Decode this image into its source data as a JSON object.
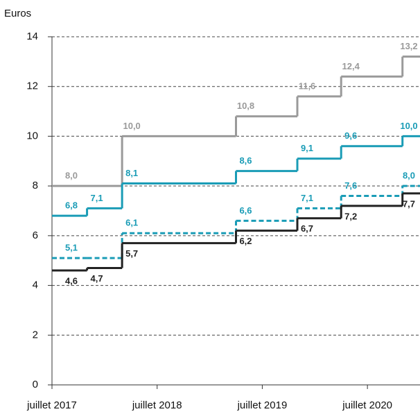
{
  "chart_data": {
    "type": "step",
    "ylabel": "Euros",
    "x": [
      "2017-07",
      "2017-11",
      "2018-03",
      "2019-04",
      "2019-11",
      "2020-04",
      "2020-11"
    ],
    "xlim": [
      "2017-07",
      "2021-01"
    ],
    "xticks": [
      {
        "value": "2017-07",
        "label": "juillet 2017"
      },
      {
        "value": "2018-07",
        "label": "juillet 2018"
      },
      {
        "value": "2019-07",
        "label": "juillet 2019"
      },
      {
        "value": "2020-07",
        "label": "juillet 2020"
      }
    ],
    "ylim": [
      0,
      14
    ],
    "yticks": [
      0,
      2,
      4,
      6,
      8,
      10,
      12,
      14
    ],
    "grid": true,
    "series": [
      {
        "color": "#9a9a9a",
        "linestyle": "solid",
        "label_side": "above",
        "values": [
          8.0,
          8.0,
          10.0,
          10.8,
          11.6,
          12.4,
          13.2
        ],
        "value_labels": [
          "8,0",
          null,
          "10,0",
          "10,8",
          "11,6",
          "12,4",
          "13,2"
        ]
      },
      {
        "color": "#1a9cb6",
        "linestyle": "solid",
        "label_side": "above",
        "values": [
          6.8,
          7.1,
          8.1,
          8.6,
          9.1,
          9.6,
          10.0
        ],
        "value_labels": [
          "6,8",
          "7,1",
          "8,1",
          "8,6",
          "9,1",
          "9,6",
          "10,0"
        ]
      },
      {
        "color": "#1a9cb6",
        "linestyle": "dashed",
        "label_side": "above",
        "values": [
          5.1,
          5.1,
          6.1,
          6.6,
          7.1,
          7.6,
          8.0
        ],
        "value_labels": [
          "5,1",
          null,
          "6,1",
          "6,6",
          "7,1",
          "7,6",
          "8,0"
        ]
      },
      {
        "color": "#222222",
        "linestyle": "solid",
        "label_side": "below",
        "values": [
          4.6,
          4.7,
          5.7,
          6.2,
          6.7,
          7.2,
          7.7
        ],
        "value_labels": [
          "4,6",
          "4,7",
          "5,7",
          "6,2",
          "6,7",
          "7,2",
          "7,7"
        ]
      }
    ]
  }
}
